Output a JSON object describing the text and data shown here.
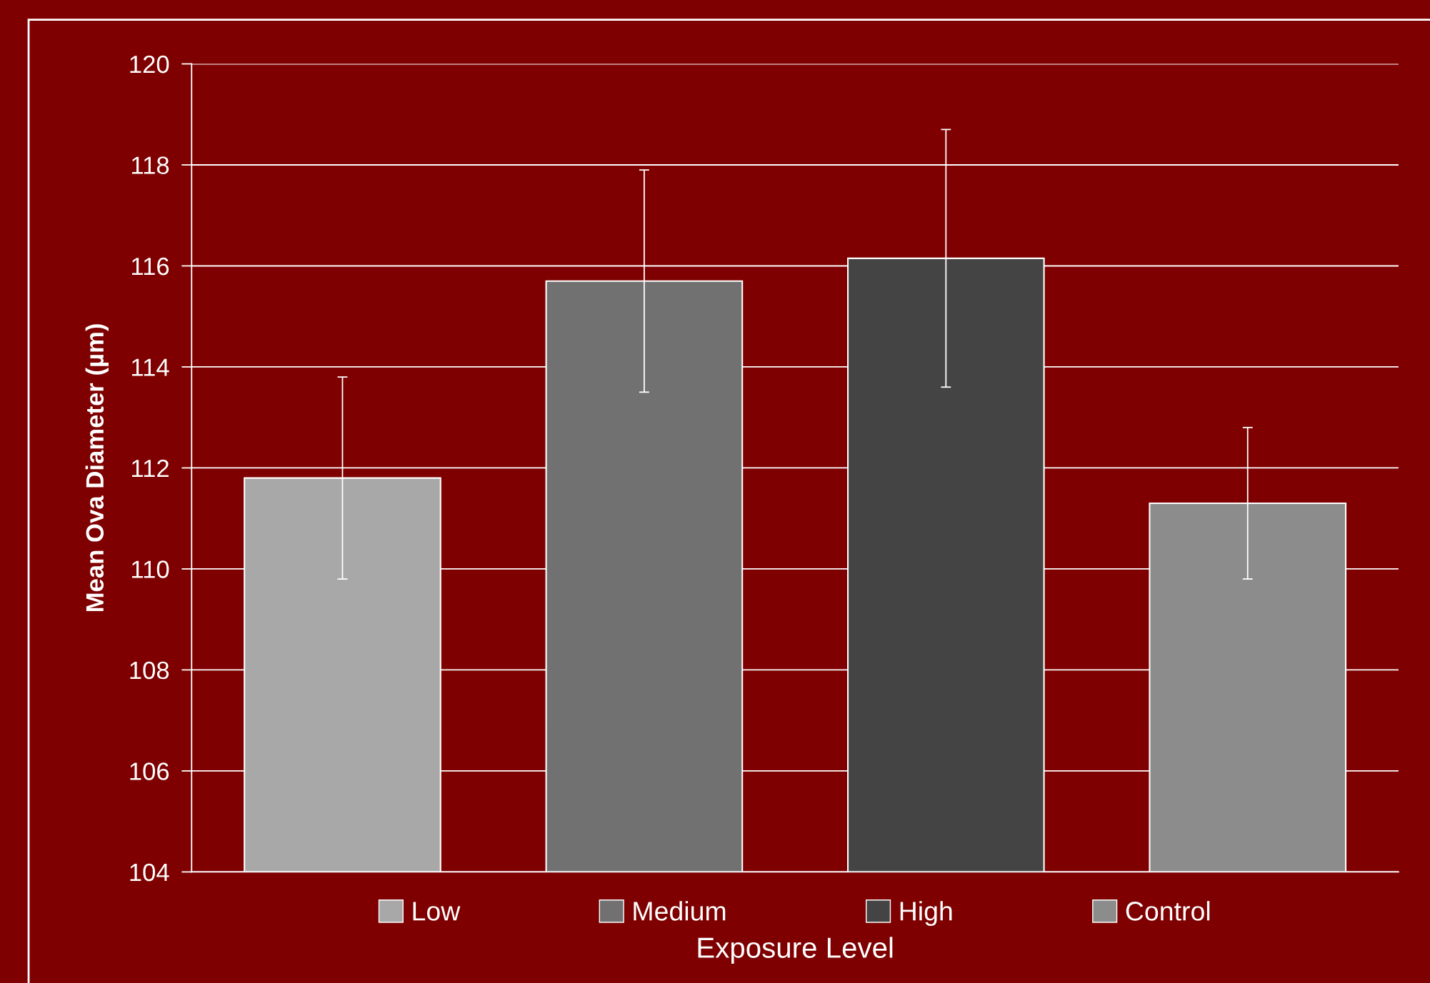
{
  "chart_data": {
    "type": "bar",
    "xlabel": "Exposure Level",
    "ylabel": "Mean Ova Diameter (µm)",
    "categories": [
      null,
      null,
      null,
      null
    ],
    "series": [
      {
        "name": "Low",
        "color": "#a8a8a8",
        "values": [
          111.8,
          null,
          null,
          null
        ],
        "errors": [
          2.0,
          null,
          null,
          null
        ]
      },
      {
        "name": "Medium",
        "color": "#717171",
        "values": [
          null,
          115.7,
          null,
          null
        ],
        "errors": [
          null,
          2.2,
          null,
          null
        ]
      },
      {
        "name": "High",
        "color": "#444444",
        "values": [
          null,
          null,
          116.15,
          null
        ],
        "errors": [
          null,
          null,
          2.55,
          null
        ]
      },
      {
        "name": "Control",
        "color": "#8c8c8c",
        "values": [
          null,
          null,
          null,
          111.3
        ],
        "errors": [
          null,
          null,
          null,
          1.5
        ]
      }
    ],
    "ylim": [
      104,
      120
    ],
    "yticks": [
      104,
      106,
      108,
      110,
      112,
      114,
      116,
      118,
      120
    ],
    "grid": "y",
    "legend": "bottom"
  }
}
